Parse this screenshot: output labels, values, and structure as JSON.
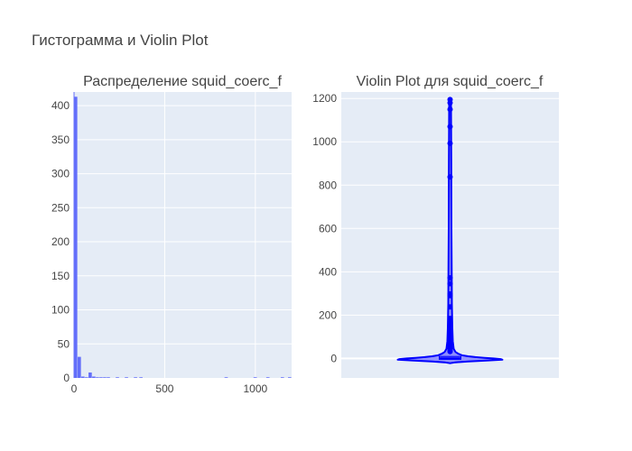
{
  "figure": {
    "title": "Гистограмма и Violin Plot"
  },
  "colors": {
    "plot_bg": "#e5ecf6",
    "grid": "#ffffff",
    "hist_bar": "#636efa",
    "violin_line": "#0000ff",
    "violin_fill": "#7070ff",
    "text": "#444444"
  },
  "chart_data": [
    {
      "type": "bar",
      "title": "Распределение squid_coerc_f",
      "xlabel": "",
      "ylabel": "",
      "xlim": [
        0,
        1200
      ],
      "ylim": [
        0,
        420
      ],
      "x_ticks": [
        0,
        500,
        1000
      ],
      "y_ticks": [
        0,
        50,
        100,
        150,
        200,
        250,
        300,
        350,
        400
      ],
      "grid": true,
      "bins": [
        {
          "x0": 0,
          "x1": 20,
          "count": 413
        },
        {
          "x0": 20,
          "x1": 40,
          "count": 31
        },
        {
          "x0": 40,
          "x1": 60,
          "count": 2
        },
        {
          "x0": 60,
          "x1": 80,
          "count": 1
        },
        {
          "x0": 80,
          "x1": 100,
          "count": 8
        },
        {
          "x0": 100,
          "x1": 120,
          "count": 2
        },
        {
          "x0": 120,
          "x1": 140,
          "count": 1
        },
        {
          "x0": 140,
          "x1": 160,
          "count": 1
        },
        {
          "x0": 160,
          "x1": 180,
          "count": 1
        },
        {
          "x0": 180,
          "x1": 200,
          "count": 1
        },
        {
          "x0": 230,
          "x1": 250,
          "count": 1
        },
        {
          "x0": 280,
          "x1": 300,
          "count": 1
        },
        {
          "x0": 330,
          "x1": 350,
          "count": 1
        },
        {
          "x0": 360,
          "x1": 380,
          "count": 1
        },
        {
          "x0": 830,
          "x1": 850,
          "count": 1
        },
        {
          "x0": 990,
          "x1": 1010,
          "count": 1
        },
        {
          "x0": 1060,
          "x1": 1080,
          "count": 1
        },
        {
          "x0": 1140,
          "x1": 1160,
          "count": 1
        },
        {
          "x0": 1180,
          "x1": 1200,
          "count": 1
        }
      ]
    },
    {
      "type": "violin",
      "title": "Violin Plot для squid_coerc_f",
      "xlabel": "",
      "ylabel": "",
      "ylim": [
        -90,
        1230
      ],
      "y_ticks": [
        0,
        200,
        400,
        600,
        800,
        1000,
        1200
      ],
      "grid": true,
      "median": 0,
      "q1": 0,
      "q3": 5,
      "upper_fence": 30,
      "outliers": [
        1195,
        1180,
        1150,
        1070,
        993,
        838,
        372,
        345,
        298,
        290,
        238,
        185,
        165,
        150,
        133,
        118,
        105,
        93,
        82,
        72,
        62,
        52,
        45,
        38,
        32
      ]
    }
  ]
}
